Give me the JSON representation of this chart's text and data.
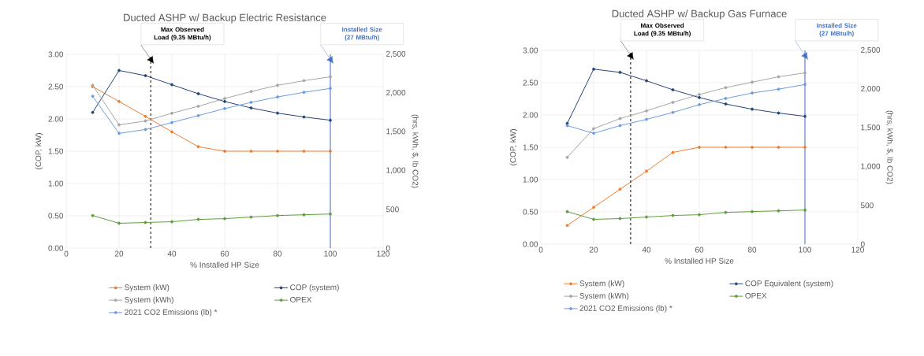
{
  "chart_data": [
    {
      "type": "line",
      "title": "Ducted ASHP w/ Backup Electric Resistance",
      "xlabel": "% Installed HP Size",
      "ylabel": "(COP, kW)",
      "y2label": "(hrs, kWh, $, lb CO2)",
      "x": [
        10,
        20,
        30,
        40,
        50,
        60,
        70,
        80,
        90,
        100
      ],
      "xlim": [
        0,
        120
      ],
      "xticks": [
        0,
        20,
        40,
        60,
        80,
        100,
        120
      ],
      "ylim": [
        0,
        3
      ],
      "yticks": [
        {
          "value": 0,
          "label": "0.00"
        },
        {
          "value": 0.5,
          "label": "0.50"
        },
        {
          "value": 1,
          "label": "1.00"
        },
        {
          "value": 1.5,
          "label": "1.50"
        },
        {
          "value": 2,
          "label": "2.00"
        },
        {
          "value": 2.5,
          "label": "2.50"
        },
        {
          "value": 3,
          "label": "3.00"
        }
      ],
      "y2lim": [
        0,
        2500
      ],
      "y2ticks": [
        0,
        500,
        {
          "value": 1000,
          "label": "1,000"
        },
        {
          "value": 1500,
          "label": "1,500"
        },
        {
          "value": 2000,
          "label": "2,000"
        },
        {
          "value": 2500,
          "label": "2,500"
        }
      ],
      "grid": true,
      "legend": "bottom",
      "marker": "circle",
      "line_style": "solid",
      "series": [
        {
          "name": "System (kW)",
          "color": "#ed7d31",
          "values": [
            2.5,
            2.27,
            2.04,
            1.8,
            1.57,
            1.5,
            1.5,
            1.5,
            1.5,
            1.5
          ]
        },
        {
          "name": "COP (system)",
          "color": "#264478",
          "values": [
            2.1,
            2.75,
            2.67,
            2.53,
            2.39,
            2.27,
            2.17,
            2.09,
            2.03,
            1.98
          ]
        },
        {
          "name": "System (kWh)",
          "color": "#a5a5a5",
          "axis": "y2",
          "values": [
            2100,
            1590,
            1640,
            1740,
            1830,
            1930,
            2020,
            2100,
            2160,
            2210
          ]
        },
        {
          "name": "OPEX",
          "color": "#5e9e3c",
          "axis": "y2",
          "values": [
            420,
            320,
            330,
            340,
            370,
            380,
            400,
            420,
            430,
            440
          ]
        },
        {
          "name": "2021 CO2 Emissions (lb) *",
          "color": "#6e9be0",
          "axis": "y2",
          "values": [
            1960,
            1480,
            1530,
            1620,
            1710,
            1800,
            1880,
            1950,
            2010,
            2060
          ]
        }
      ],
      "ref_lines": [
        {
          "axis": "x",
          "value": 32,
          "label": "Max Observed Load (9.35 MBtu/h)",
          "color": "#000000",
          "line_style": "dashed"
        },
        {
          "axis": "x",
          "value": 100,
          "label": "Installed Size (27 MBtu/h)",
          "color": "#4472c4",
          "line_style": "solid"
        }
      ]
    },
    {
      "type": "line",
      "title": "Ducted ASHP w/ Backup Gas Furnace",
      "xlabel": "% Installed HP Size",
      "ylabel": "(COP, kW)",
      "y2label": "(hrs, kWh, $, lb CO2)",
      "x": [
        10,
        20,
        30,
        40,
        50,
        60,
        70,
        80,
        90,
        100
      ],
      "xlim": [
        0,
        120
      ],
      "xticks": [
        0,
        20,
        40,
        60,
        80,
        100,
        120
      ],
      "ylim": [
        0,
        3
      ],
      "yticks": [
        {
          "value": 0,
          "label": "0.00"
        },
        {
          "value": 0.5,
          "label": "0.50"
        },
        {
          "value": 1,
          "label": "1.00"
        },
        {
          "value": 1.5,
          "label": "1.50"
        },
        {
          "value": 2,
          "label": "2.00"
        },
        {
          "value": 2.5,
          "label": "2.50"
        },
        {
          "value": 3,
          "label": "3.00"
        }
      ],
      "y2lim": [
        0,
        2500
      ],
      "y2ticks": [
        0,
        500,
        {
          "value": 1000,
          "label": "1,000"
        },
        {
          "value": 1500,
          "label": "1,500"
        },
        {
          "value": 2000,
          "label": "2,000"
        },
        {
          "value": 2500,
          "label": "2,500"
        }
      ],
      "grid": true,
      "legend": "bottom",
      "marker": "circle",
      "line_style": "solid",
      "series": [
        {
          "name": "System (kW)",
          "color": "#ed7d31",
          "values": [
            0.29,
            0.57,
            0.85,
            1.13,
            1.42,
            1.5,
            1.5,
            1.5,
            1.5,
            1.5
          ]
        },
        {
          "name": "COP Equivalent (system)",
          "color": "#264478",
          "values": [
            1.87,
            2.71,
            2.66,
            2.53,
            2.39,
            2.27,
            2.17,
            2.09,
            2.03,
            1.98
          ]
        },
        {
          "name": "System (kWh)",
          "color": "#a5a5a5",
          "axis": "y2",
          "values": [
            1120,
            1490,
            1620,
            1720,
            1830,
            1930,
            2020,
            2090,
            2160,
            2210
          ]
        },
        {
          "name": "OPEX",
          "color": "#5e9e3c",
          "axis": "y2",
          "values": [
            420,
            320,
            330,
            350,
            370,
            380,
            410,
            420,
            430,
            440
          ]
        },
        {
          "name": "2021 CO2 Emissions (lb) *",
          "color": "#6e9be0",
          "axis": "y2",
          "values": [
            1530,
            1430,
            1530,
            1610,
            1700,
            1800,
            1880,
            1950,
            2000,
            2060
          ]
        }
      ],
      "ref_lines": [
        {
          "axis": "x",
          "value": 34,
          "label": "Max Observed Load (9.35 MBtu/h)",
          "color": "#000000",
          "line_style": "dashed"
        },
        {
          "axis": "x",
          "value": 100,
          "label": "Installed Size (27 MBtu/h)",
          "color": "#4472c4",
          "line_style": "solid"
        }
      ]
    }
  ]
}
